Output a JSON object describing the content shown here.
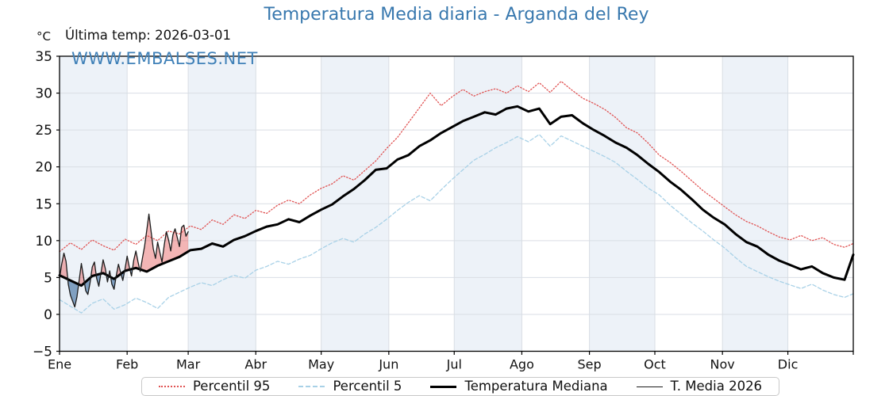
{
  "header": {
    "title": "Temperatura Media diaria - Arganda del Rey",
    "unit_label": "°C",
    "last_temp_label": "Última temp: 2026-03-01",
    "watermark": "WWW.EMBALSES.NET"
  },
  "colors": {
    "title": "#3878ae",
    "watermark": "#4081b8",
    "band": "#edf2f8",
    "grid": "#d9dee4",
    "frame": "#000000",
    "tick_text": "#111111",
    "p95": "#e05252",
    "p5": "#a8d1e7",
    "median": "#000000",
    "t2026": "#1c1c1c",
    "fill_above": "rgba(228,90,90,0.45)",
    "fill_below": "rgba(62,110,160,0.62)"
  },
  "chart_data": {
    "type": "line",
    "title": "Temperatura Media diaria - Arganda del Rey",
    "y_unit": "°C",
    "ylim": [
      -5,
      35
    ],
    "yticks": [
      -5,
      0,
      5,
      10,
      15,
      20,
      25,
      30,
      35
    ],
    "ytick_labels": [
      "−5",
      "0",
      "5",
      "10",
      "15",
      "20",
      "25",
      "30",
      "35"
    ],
    "month_labels": [
      "Ene",
      "Feb",
      "Mar",
      "Abr",
      "May",
      "Jun",
      "Jul",
      "Ago",
      "Sep",
      "Oct",
      "Nov",
      "Dic"
    ],
    "month_start_days": [
      1,
      32,
      60,
      91,
      121,
      152,
      182,
      213,
      244,
      274,
      305,
      335
    ],
    "days_in_year": 365,
    "grid": true,
    "legend_position": "bottom",
    "sample_days": [
      1,
      6,
      11,
      16,
      21,
      26,
      31,
      36,
      41,
      46,
      51,
      56,
      61,
      66,
      71,
      76,
      81,
      86,
      91,
      96,
      101,
      106,
      111,
      116,
      121,
      126,
      131,
      136,
      141,
      146,
      151,
      156,
      161,
      166,
      171,
      176,
      181,
      186,
      191,
      196,
      201,
      206,
      211,
      216,
      221,
      226,
      231,
      236,
      241,
      246,
      251,
      256,
      261,
      266,
      271,
      276,
      281,
      286,
      291,
      296,
      301,
      306,
      311,
      316,
      321,
      326,
      331,
      336,
      341,
      346,
      351,
      356,
      361,
      365
    ],
    "series": [
      {
        "name": "Percentil 95",
        "style": "dotted",
        "width": 1.3,
        "color_key": "p95",
        "values": [
          8.5,
          9.7,
          8.8,
          10.1,
          9.3,
          8.7,
          10.2,
          9.5,
          10.7,
          10.0,
          11.3,
          10.9,
          12.0,
          11.5,
          12.8,
          12.2,
          13.5,
          13.0,
          14.1,
          13.7,
          14.8,
          15.5,
          15.0,
          16.2,
          17.1,
          17.7,
          18.8,
          18.2,
          19.5,
          20.8,
          22.5,
          24.0,
          26.0,
          28.0,
          30.0,
          28.3,
          29.5,
          30.5,
          29.6,
          30.2,
          30.6,
          30.0,
          31.0,
          30.2,
          31.4,
          30.1,
          31.6,
          30.4,
          29.3,
          28.6,
          27.8,
          26.7,
          25.3,
          24.6,
          23.2,
          21.6,
          20.6,
          19.4,
          18.1,
          16.8,
          15.7,
          14.6,
          13.5,
          12.6,
          12.0,
          11.2,
          10.5,
          10.1,
          10.7,
          10.0,
          10.4,
          9.5,
          9.1,
          9.6
        ]
      },
      {
        "name": "Percentil 5",
        "style": "dashed",
        "width": 1.3,
        "color_key": "p5",
        "values": [
          2.0,
          1.1,
          0.2,
          1.5,
          2.1,
          0.7,
          1.3,
          2.2,
          1.6,
          0.8,
          2.3,
          3.0,
          3.7,
          4.3,
          3.9,
          4.7,
          5.3,
          4.9,
          6.0,
          6.5,
          7.2,
          6.8,
          7.5,
          8.0,
          8.9,
          9.7,
          10.3,
          9.8,
          10.9,
          11.8,
          12.9,
          14.1,
          15.2,
          16.1,
          15.4,
          16.9,
          18.3,
          19.6,
          20.9,
          21.7,
          22.6,
          23.3,
          24.1,
          23.4,
          24.4,
          22.8,
          24.2,
          23.5,
          22.8,
          22.1,
          21.4,
          20.6,
          19.4,
          18.3,
          17.1,
          16.2,
          14.8,
          13.6,
          12.4,
          11.3,
          10.1,
          9.0,
          7.7,
          6.5,
          5.8,
          5.1,
          4.5,
          4.0,
          3.5,
          4.1,
          3.3,
          2.7,
          2.3,
          2.8
        ]
      },
      {
        "name": "Temperatura Mediana",
        "style": "solid",
        "width": 3,
        "color_key": "median",
        "values": [
          5.3,
          4.6,
          3.9,
          5.2,
          5.6,
          4.8,
          5.9,
          6.3,
          5.8,
          6.6,
          7.2,
          7.8,
          8.7,
          8.9,
          9.6,
          9.2,
          10.1,
          10.6,
          11.3,
          11.9,
          12.2,
          12.9,
          12.5,
          13.4,
          14.2,
          14.9,
          16.0,
          17.0,
          18.2,
          19.6,
          19.8,
          21.0,
          21.6,
          22.8,
          23.6,
          24.6,
          25.4,
          26.2,
          26.8,
          27.4,
          27.1,
          27.9,
          28.2,
          27.5,
          27.9,
          25.8,
          26.8,
          27.0,
          25.9,
          25.0,
          24.2,
          23.3,
          22.6,
          21.6,
          20.4,
          19.3,
          18.0,
          16.9,
          15.6,
          14.2,
          13.1,
          12.2,
          10.9,
          9.8,
          9.2,
          8.1,
          7.3,
          6.7,
          6.1,
          6.5,
          5.6,
          5.0,
          4.7,
          8.1
        ]
      },
      {
        "name": "T. Media 2026",
        "style": "solid",
        "width": 1.3,
        "color_key": "t2026",
        "cadence": "daily",
        "start_day": 1,
        "end_day": 60,
        "values": [
          4.9,
          6.8,
          8.3,
          7.2,
          4.1,
          2.6,
          1.8,
          1.0,
          2.4,
          4.6,
          6.9,
          5.1,
          3.2,
          2.7,
          4.3,
          6.4,
          7.1,
          4.9,
          3.8,
          5.6,
          7.4,
          6.2,
          4.4,
          5.9,
          4.1,
          3.4,
          5.2,
          6.8,
          5.7,
          4.6,
          6.1,
          7.9,
          6.4,
          5.2,
          7.3,
          8.6,
          7.1,
          5.8,
          7.6,
          9.2,
          11.4,
          13.6,
          11.2,
          8.9,
          7.6,
          9.8,
          8.4,
          7.1,
          9.4,
          11.2,
          10.1,
          8.6,
          10.8,
          11.6,
          10.4,
          9.2,
          11.8,
          12.1,
          10.6,
          11.2
        ]
      }
    ],
    "anomaly_fill": {
      "compare_series": "T. Media 2026",
      "baseline_series": "Temperatura Mediana",
      "above_color_key": "fill_above",
      "below_color_key": "fill_below"
    }
  },
  "legend": {
    "items": [
      {
        "label": "Percentil 95"
      },
      {
        "label": "Percentil 5"
      },
      {
        "label": "Temperatura Mediana"
      },
      {
        "label": "T. Media 2026"
      }
    ]
  }
}
